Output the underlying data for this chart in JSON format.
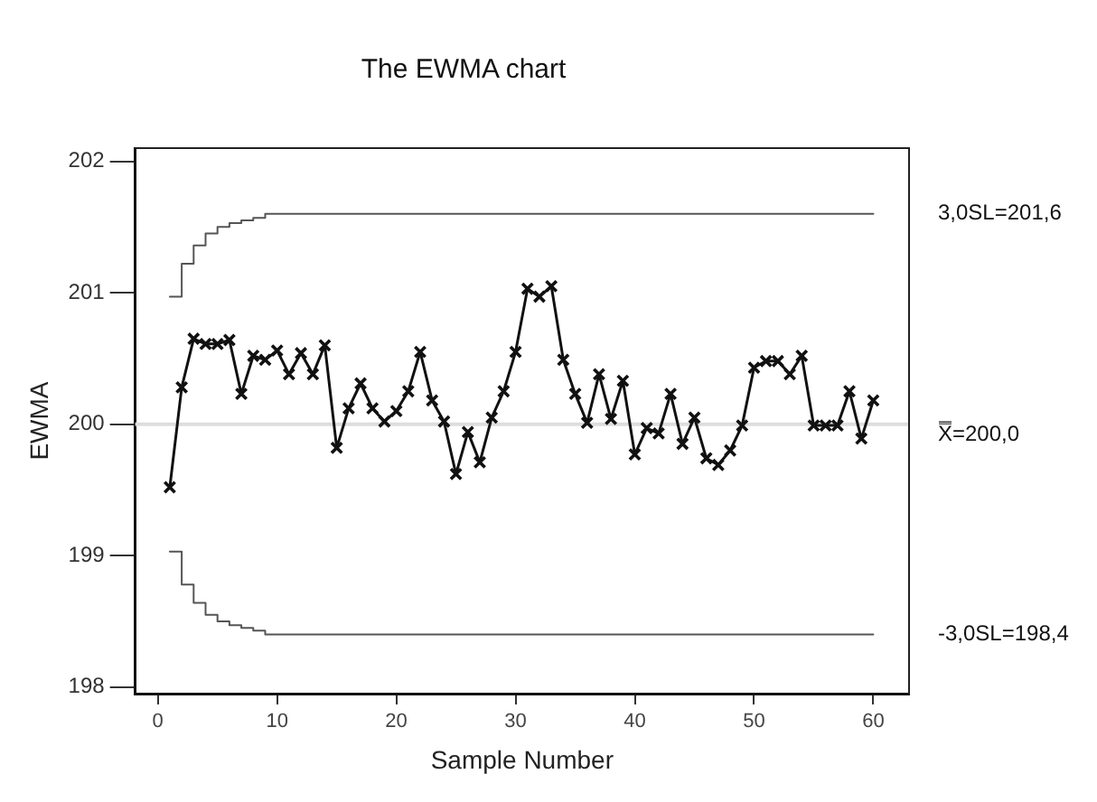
{
  "chart_data": {
    "type": "line",
    "title": "The EWMA chart",
    "xlabel": "Sample Number",
    "ylabel": "EWMA",
    "xlim": [
      -1.9,
      63
    ],
    "xticks": [
      0,
      10,
      20,
      30,
      40,
      50,
      60
    ],
    "ylim": [
      197.95,
      202.1
    ],
    "yticks": [
      198,
      199,
      200,
      201,
      202
    ],
    "grid": false,
    "legend": false,
    "marker": "cross",
    "line_style": "solid",
    "x": [
      1,
      2,
      3,
      4,
      5,
      6,
      7,
      8,
      9,
      10,
      11,
      12,
      13,
      14,
      15,
      16,
      17,
      18,
      19,
      20,
      21,
      22,
      23,
      24,
      25,
      26,
      27,
      28,
      29,
      30,
      31,
      32,
      33,
      34,
      35,
      36,
      37,
      38,
      39,
      40,
      41,
      42,
      43,
      44,
      45,
      46,
      47,
      48,
      49,
      50,
      51,
      52,
      53,
      54,
      55,
      56,
      57,
      58,
      59,
      60
    ],
    "series": [
      {
        "color": "#111111",
        "values": [
          199.52,
          200.28,
          200.65,
          200.61,
          200.61,
          200.64,
          200.23,
          200.52,
          200.49,
          200.56,
          200.38,
          200.54,
          200.38,
          200.6,
          199.82,
          200.12,
          200.31,
          200.12,
          200.02,
          200.1,
          200.25,
          200.55,
          200.18,
          200.02,
          199.62,
          199.94,
          199.71,
          200.05,
          200.25,
          200.55,
          201.03,
          200.97,
          201.05,
          200.49,
          200.23,
          200.01,
          200.38,
          200.04,
          200.33,
          199.77,
          199.97,
          199.93,
          200.23,
          199.85,
          200.05,
          199.74,
          199.69,
          199.8,
          199.99,
          200.43,
          200.48,
          200.48,
          200.38,
          200.52,
          199.99,
          199.99,
          199.99,
          200.25,
          199.89,
          200.18
        ]
      },
      {
        "type": "step",
        "name": "3,0SL=201,6",
        "color": "#555555",
        "marker": "none",
        "values": [
          200.97,
          201.22,
          201.36,
          201.45,
          201.5,
          201.53,
          201.55,
          201.57,
          201.6,
          201.6,
          201.6,
          201.6,
          201.6,
          201.6,
          201.6,
          201.6,
          201.6,
          201.6,
          201.6,
          201.6,
          201.6,
          201.6,
          201.6,
          201.6,
          201.6,
          201.6,
          201.6,
          201.6,
          201.6,
          201.6,
          201.6,
          201.6,
          201.6,
          201.6,
          201.6,
          201.6,
          201.6,
          201.6,
          201.6,
          201.6,
          201.6,
          201.6,
          201.6,
          201.6,
          201.6,
          201.6,
          201.6,
          201.6,
          201.6,
          201.6,
          201.6,
          201.6,
          201.6,
          201.6,
          201.6,
          201.6,
          201.6,
          201.6,
          201.6,
          201.6
        ]
      },
      {
        "type": "step",
        "name": "-3,0SL=198,4",
        "color": "#555555",
        "marker": "none",
        "values": [
          199.03,
          198.78,
          198.64,
          198.55,
          198.5,
          198.47,
          198.45,
          198.43,
          198.4,
          198.4,
          198.4,
          198.4,
          198.4,
          198.4,
          198.4,
          198.4,
          198.4,
          198.4,
          198.4,
          198.4,
          198.4,
          198.4,
          198.4,
          198.4,
          198.4,
          198.4,
          198.4,
          198.4,
          198.4,
          198.4,
          198.4,
          198.4,
          198.4,
          198.4,
          198.4,
          198.4,
          198.4,
          198.4,
          198.4,
          198.4,
          198.4,
          198.4,
          198.4,
          198.4,
          198.4,
          198.4,
          198.4,
          198.4,
          198.4,
          198.4,
          198.4,
          198.4,
          198.4,
          198.4,
          198.4,
          198.4,
          198.4,
          198.4,
          198.4,
          198.4
        ]
      }
    ],
    "ref_lines": [
      {
        "axis": "y",
        "value": 200,
        "label": "X̿=200,0",
        "color": "#dddddd"
      }
    ]
  }
}
